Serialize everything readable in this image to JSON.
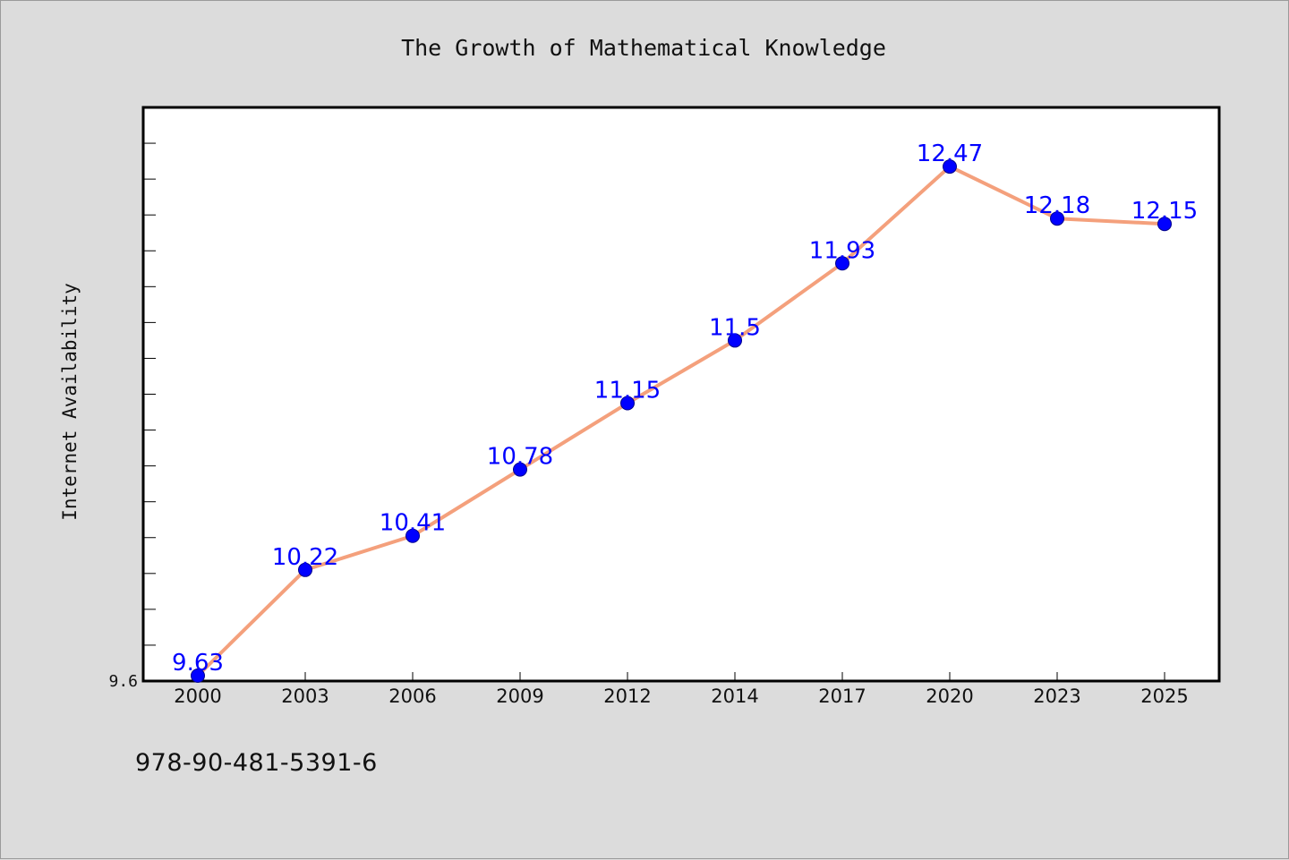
{
  "chart_data": {
    "type": "line",
    "title": "The Growth of Mathematical Knowledge",
    "xlabel": "",
    "ylabel": "Internet Availability",
    "categories": [
      "2000",
      "2003",
      "2006",
      "2009",
      "2012",
      "2014",
      "2017",
      "2020",
      "2023",
      "2025"
    ],
    "series": [
      {
        "values": [
          9.63,
          10.22,
          10.41,
          10.78,
          11.15,
          11.5,
          11.93,
          12.47,
          12.18,
          12.15
        ],
        "labels": [
          "9.63",
          "10.22",
          "10.41",
          "10.78",
          "11.15",
          "11.5",
          "11.93",
          "12.47",
          "12.18",
          "12.15"
        ]
      }
    ],
    "ylim": [
      9.6,
      12.8
    ],
    "yticks_labeled": [
      "9.6"
    ],
    "grid": false,
    "legend": "none",
    "colors": {
      "line": "#f4a07c",
      "marker": "#0000ff",
      "data_label": "#0000ff",
      "plot_bg": "#ffffff",
      "page_bg": "#dcdcdc"
    }
  },
  "footer": {
    "isbn": "978-90-481-5391-6"
  }
}
